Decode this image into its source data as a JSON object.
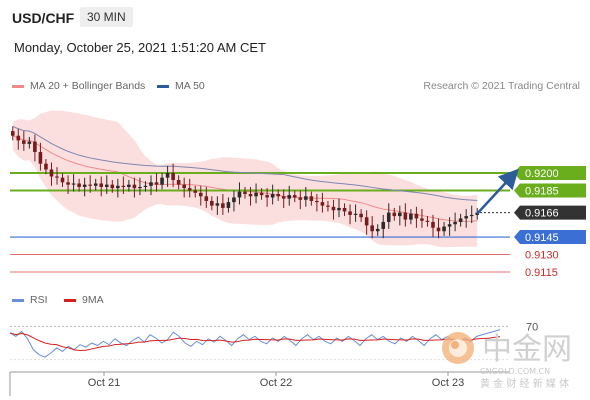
{
  "header": {
    "symbol": "USD/CHF",
    "timeframe": "30 MIN",
    "datetime": "Monday, October 25, 2021 1:51:20 AM CET"
  },
  "legend": {
    "items": [
      {
        "label": "MA 20 + Bollinger Bands",
        "color": "#f08a8a"
      },
      {
        "label": "MA 50",
        "color": "#2e5b9a"
      }
    ],
    "rsi_items": [
      {
        "label": "RSI",
        "color": "#6a8fd8"
      },
      {
        "label": "9MA",
        "color": "#d62020"
      }
    ]
  },
  "credit": "Research © 2021 Trading Central",
  "watermark": {
    "name": "中金网",
    "domain": "CNGOLD.COM.CN",
    "tagline": "黄 金 财 经 新 媒 体"
  },
  "colors": {
    "resistance": "#6aae1e",
    "pivot": "#3b6fd4",
    "support": "#e07070",
    "last_price": "#333333",
    "candle_up": "#2b2b2b",
    "candle_down": "#7a1b1b"
  },
  "chart_data": {
    "type": "candlestick",
    "x_ticks": [
      "Oct 21",
      "Oct 22",
      "Oct 23"
    ],
    "last_price": 0.9166,
    "levels": [
      {
        "value": 0.92,
        "label": "0.9200",
        "kind": "resistance"
      },
      {
        "value": 0.9185,
        "label": "0.9185",
        "kind": "resistance"
      },
      {
        "value": 0.9166,
        "label": "0.9166",
        "kind": "last"
      },
      {
        "value": 0.9145,
        "label": "0.9145",
        "kind": "pivot"
      },
      {
        "value": 0.913,
        "label": "0.9130",
        "kind": "support"
      },
      {
        "value": 0.9115,
        "label": "0.9115",
        "kind": "support"
      }
    ],
    "price_range": [
      0.911,
      0.9245
    ],
    "close": [
      0.9232,
      0.9228,
      0.9225,
      0.9227,
      0.9218,
      0.9208,
      0.9203,
      0.9197,
      0.9196,
      0.9192,
      0.919,
      0.9191,
      0.9188,
      0.919,
      0.9189,
      0.9191,
      0.9188,
      0.919,
      0.9187,
      0.9189,
      0.9188,
      0.919,
      0.9187,
      0.9188,
      0.9189,
      0.9192,
      0.919,
      0.9196,
      0.92,
      0.9194,
      0.919,
      0.9187,
      0.9185,
      0.9183,
      0.918,
      0.9176,
      0.9172,
      0.9174,
      0.917,
      0.9175,
      0.9179,
      0.9184,
      0.9182,
      0.918,
      0.9183,
      0.9181,
      0.9179,
      0.9182,
      0.918,
      0.9178,
      0.9181,
      0.9179,
      0.9177,
      0.918,
      0.9176,
      0.9175,
      0.9172,
      0.9171,
      0.9168,
      0.917,
      0.9167,
      0.9164,
      0.9165,
      0.9162,
      0.9155,
      0.915,
      0.9152,
      0.9158,
      0.9166,
      0.9163,
      0.9166,
      0.916,
      0.9165,
      0.9161,
      0.9159,
      0.9158,
      0.9153,
      0.915,
      0.9154,
      0.9156,
      0.9158,
      0.9161,
      0.9163,
      0.9164,
      0.9166
    ],
    "rsi": {
      "reference_level": 70,
      "label": "70",
      "values": [
        62,
        58,
        64,
        55,
        42,
        36,
        33,
        38,
        44,
        40,
        46,
        42,
        48,
        45,
        50,
        47,
        52,
        48,
        55,
        50,
        47,
        53,
        57,
        51,
        60,
        56,
        50,
        54,
        63,
        58,
        50,
        46,
        52,
        48,
        55,
        51,
        58,
        53,
        47,
        55,
        60,
        54,
        58,
        52,
        49,
        56,
        52,
        58,
        53,
        47,
        55,
        60,
        54,
        58,
        52,
        49,
        56,
        52,
        58,
        53,
        47,
        55,
        60,
        54,
        58,
        52,
        49,
        56,
        52,
        58,
        53,
        47,
        55,
        60,
        54,
        58,
        52,
        49,
        56,
        52,
        58,
        60,
        62,
        64,
        66
      ]
    }
  }
}
